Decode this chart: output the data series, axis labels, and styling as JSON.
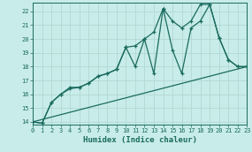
{
  "title": "",
  "xlabel": "Humidex (Indice chaleur)",
  "ylabel": "",
  "background_color": "#c8ece9",
  "grid_color": "#b2d8d4",
  "line_color": "#1a6b5f",
  "xlim": [
    0,
    23
  ],
  "ylim": [
    13.8,
    22.6
  ],
  "xticks": [
    0,
    1,
    2,
    3,
    4,
    5,
    6,
    7,
    8,
    9,
    10,
    11,
    12,
    13,
    14,
    15,
    16,
    17,
    18,
    19,
    20,
    21,
    22,
    23
  ],
  "yticks": [
    14,
    15,
    16,
    17,
    18,
    19,
    20,
    21,
    22
  ],
  "zigzag_x": [
    0,
    1,
    2,
    3,
    4,
    5,
    6,
    7,
    8,
    9,
    10,
    11,
    12,
    13,
    14,
    15,
    16,
    17,
    18,
    19,
    20,
    21,
    22,
    23
  ],
  "zigzag_y": [
    14.0,
    13.9,
    15.4,
    16.0,
    16.5,
    16.5,
    16.8,
    17.3,
    17.5,
    17.8,
    19.4,
    18.0,
    20.0,
    17.5,
    22.2,
    19.2,
    17.5,
    20.8,
    21.3,
    22.5,
    20.1,
    18.5,
    18.0,
    18.0
  ],
  "smooth_x": [
    0,
    1,
    2,
    3,
    4,
    5,
    6,
    7,
    8,
    9,
    10,
    11,
    12,
    13,
    14,
    15,
    16,
    17,
    18,
    19,
    20,
    21,
    22,
    23
  ],
  "smooth_y": [
    14.0,
    13.9,
    15.4,
    16.0,
    16.4,
    16.5,
    16.8,
    17.3,
    17.5,
    17.8,
    19.4,
    19.5,
    20.0,
    20.5,
    22.2,
    21.3,
    20.8,
    21.3,
    22.5,
    22.5,
    20.1,
    18.5,
    18.0,
    18.0
  ],
  "line_x": [
    0,
    23
  ],
  "line_y": [
    14.0,
    18.0
  ]
}
